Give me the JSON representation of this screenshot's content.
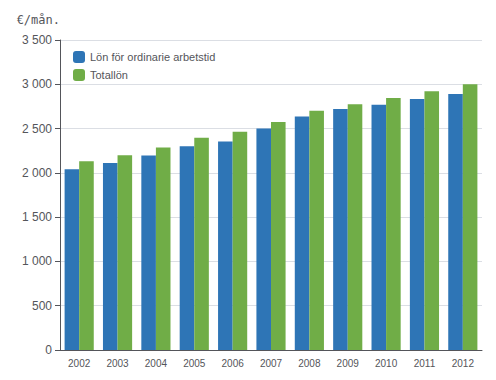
{
  "chart_data": {
    "type": "bar",
    "ylabel": "€/mån.",
    "categories": [
      "2002",
      "2003",
      "2004",
      "2005",
      "2006",
      "2007",
      "2008",
      "2009",
      "2010",
      "2011",
      "2012"
    ],
    "series": [
      {
        "name": "Lön för ordinarie arbetstid",
        "color": "#2E75B6",
        "values": [
          2040,
          2110,
          2195,
          2300,
          2355,
          2500,
          2635,
          2720,
          2770,
          2835,
          2890
        ]
      },
      {
        "name": "Totallön",
        "color": "#70AD47",
        "values": [
          2130,
          2200,
          2285,
          2395,
          2465,
          2575,
          2700,
          2775,
          2845,
          2920,
          3000
        ]
      }
    ],
    "ylim": [
      0,
      3500
    ],
    "yticks": [
      0,
      500,
      {
        "value": 1000,
        "label": "1 000"
      },
      {
        "value": 1500,
        "label": "1 500"
      },
      {
        "value": 2000,
        "label": "2 000"
      },
      {
        "value": 2500,
        "label": "2 500"
      },
      {
        "value": 3000,
        "label": "3 000"
      },
      {
        "value": 3500,
        "label": "3 500"
      }
    ],
    "grid": true,
    "legend": "upper left"
  }
}
